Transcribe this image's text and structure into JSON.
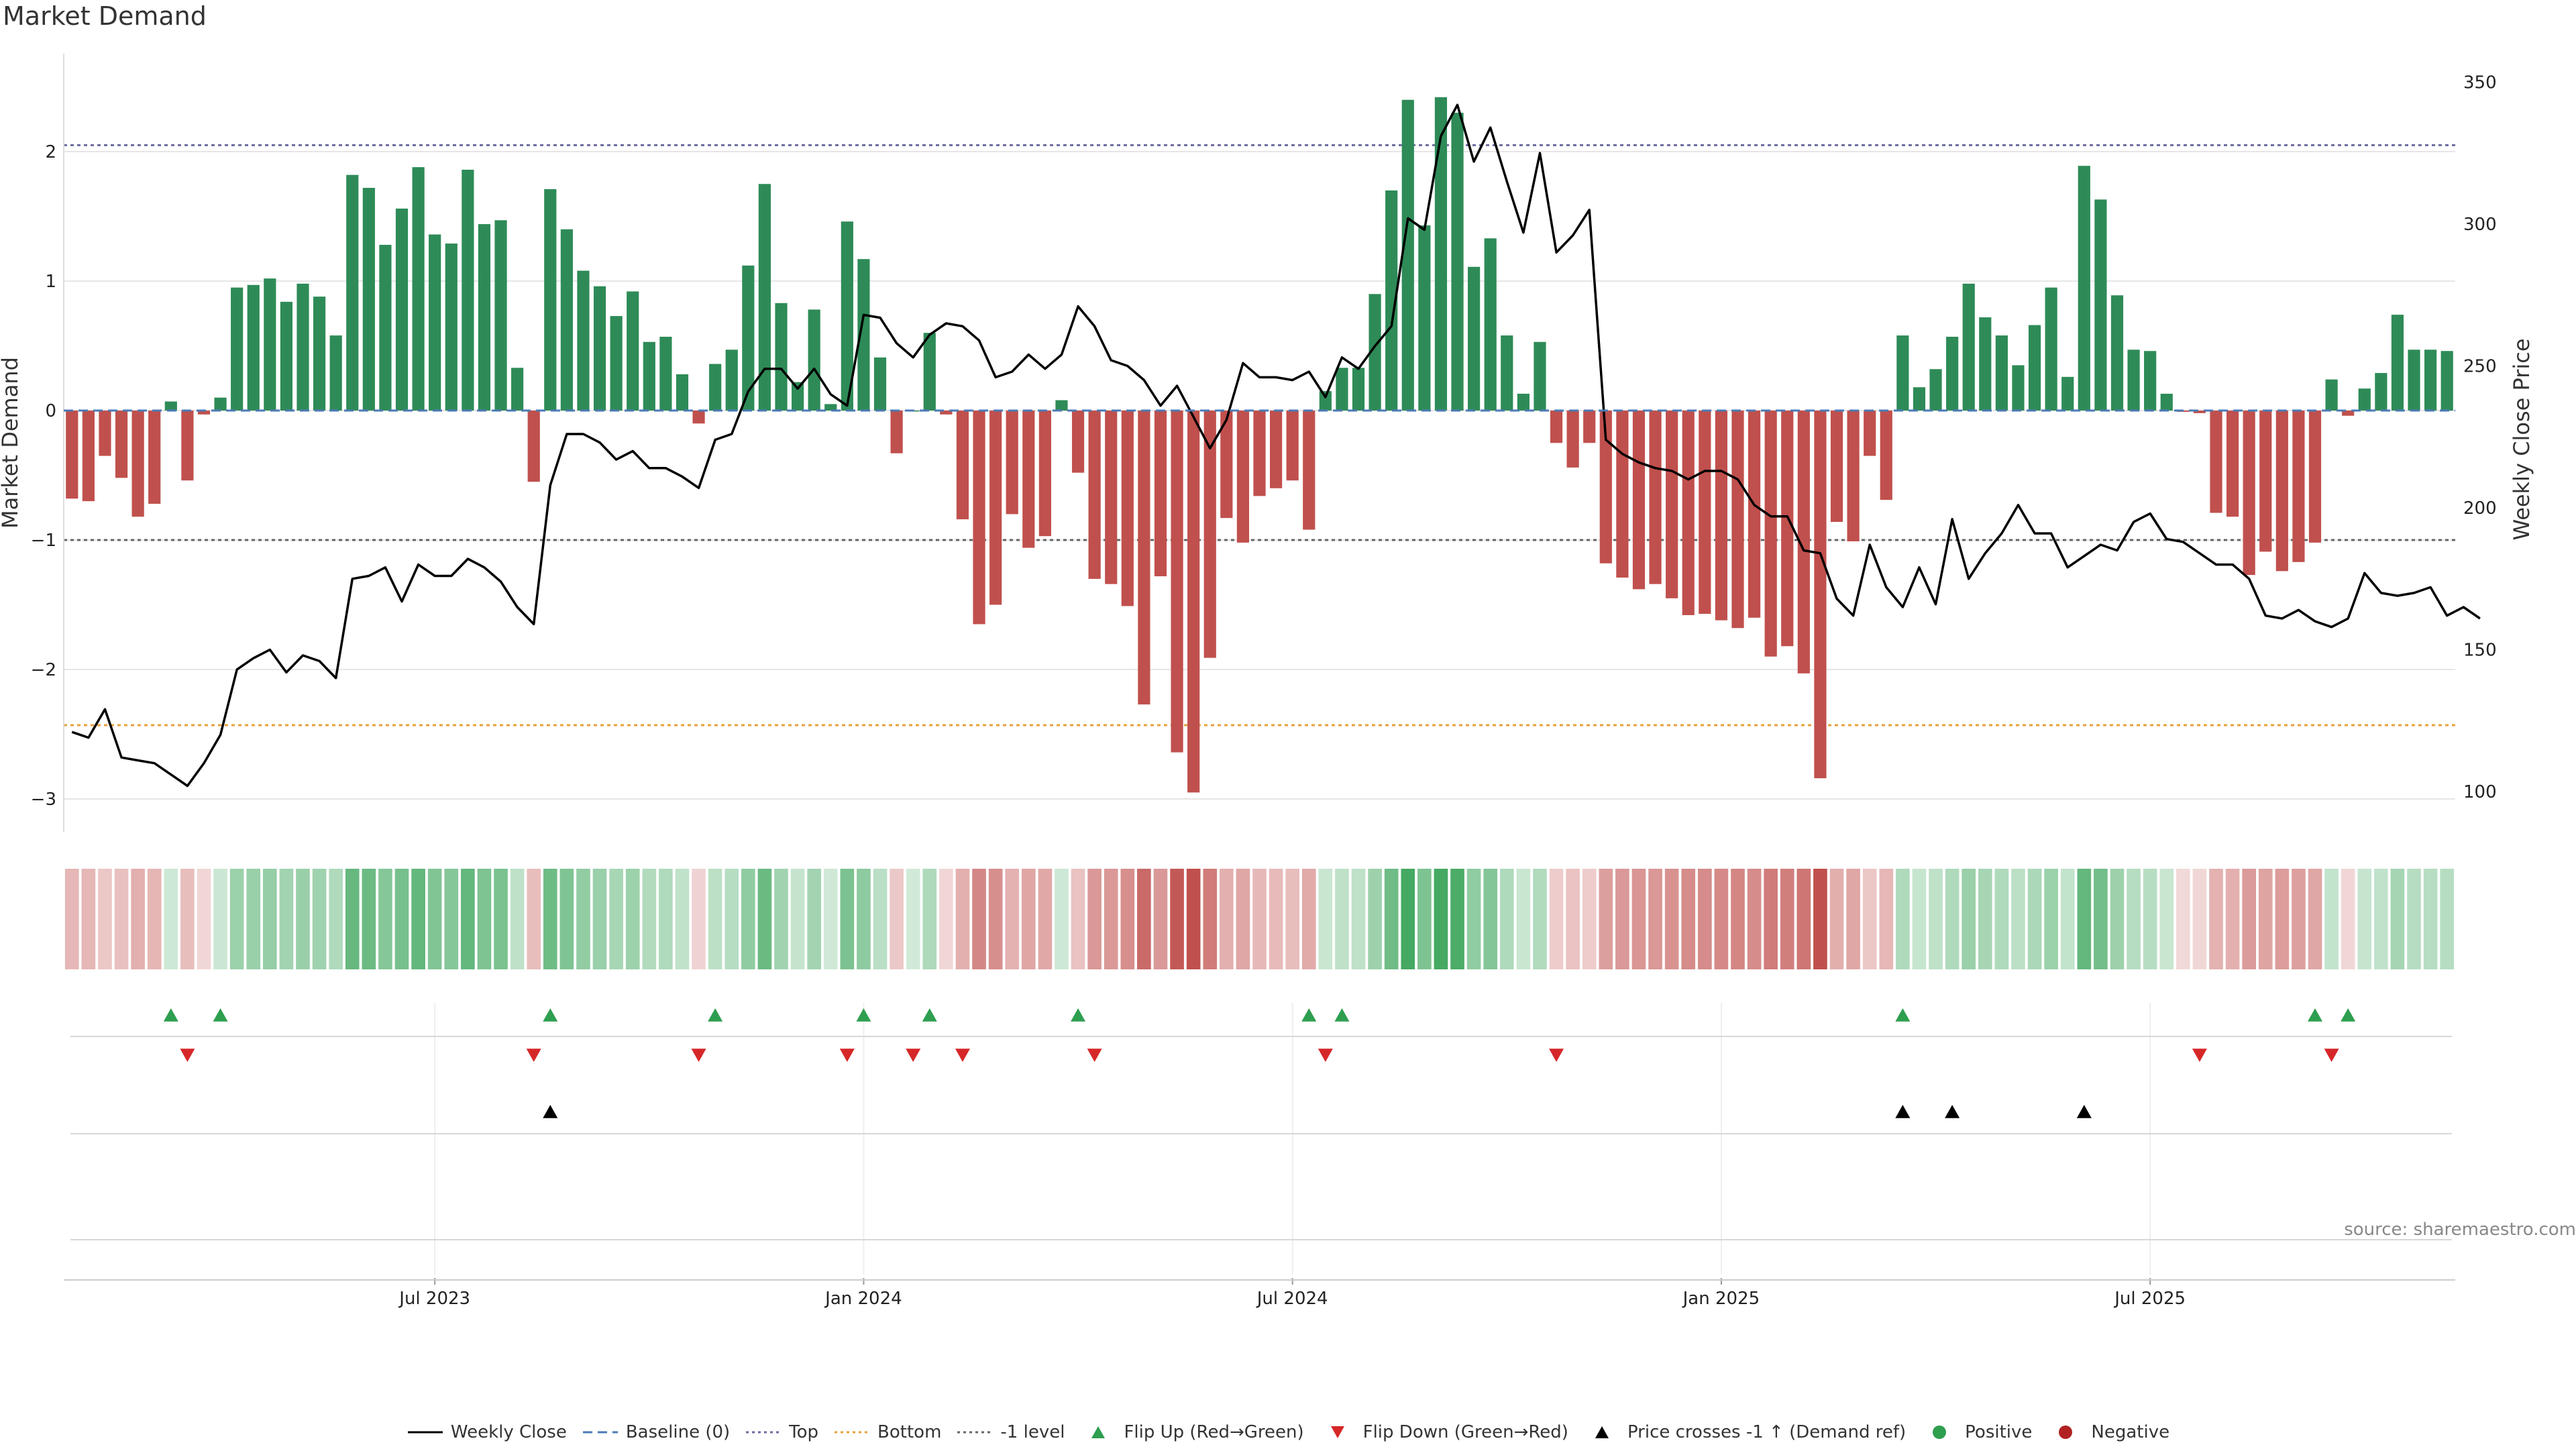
{
  "chart_data": {
    "type": "bar",
    "title": "Market Demand",
    "ylabel_left": "Market Demand",
    "ylabel_right": "Weekly Close Price",
    "source": "source: sharemaestro.com",
    "grid": true,
    "ylim_left": [
      -3.3,
      2.75
    ],
    "ylim_right": [
      95,
      355
    ],
    "yticks_left": [
      2,
      1,
      0,
      -1,
      -2,
      -3
    ],
    "yticks_left_labels": [
      "2",
      "1",
      "0",
      "−1",
      "−2",
      "−3"
    ],
    "yticks_right": [
      350,
      300,
      250,
      200,
      150,
      100
    ],
    "xticks": [
      {
        "week": 22,
        "label": "Jul 2023"
      },
      {
        "week": 48,
        "label": "Jan 2024"
      },
      {
        "week": 74,
        "label": "Jul 2024"
      },
      {
        "week": 100,
        "label": "Jan 2025"
      },
      {
        "week": 126,
        "label": "Jul 2025"
      }
    ],
    "reference_lines": {
      "baseline": 0,
      "top": 2.05,
      "bottom": -2.43,
      "minus_one": -1
    },
    "demand": [
      -0.68,
      -0.7,
      -0.35,
      -0.52,
      -0.82,
      -0.72,
      0.07,
      -0.54,
      -0.03,
      0.1,
      0.95,
      0.97,
      1.02,
      0.84,
      0.98,
      0.88,
      0.58,
      1.82,
      1.72,
      1.28,
      1.56,
      1.88,
      1.36,
      1.29,
      1.86,
      1.44,
      1.47,
      0.33,
      -0.55,
      1.71,
      1.4,
      1.08,
      0.96,
      0.73,
      0.92,
      0.53,
      0.57,
      0.28,
      -0.1,
      0.36,
      0.47,
      1.12,
      1.75,
      0.83,
      0.22,
      0.78,
      0.05,
      1.46,
      1.17,
      0.41,
      -0.33,
      0.0,
      0.6,
      -0.03,
      -0.84,
      -1.65,
      -1.5,
      -0.8,
      -1.06,
      -0.97,
      0.08,
      -0.48,
      -1.3,
      -1.34,
      -1.51,
      -2.27,
      -1.28,
      -2.64,
      -2.95,
      -1.91,
      -0.83,
      -1.02,
      -0.66,
      -0.6,
      -0.54,
      -0.92,
      0.15,
      0.33,
      0.33,
      0.9,
      1.7,
      2.4,
      1.43,
      2.42,
      2.3,
      1.11,
      1.33,
      0.58,
      0.13,
      0.53,
      -0.25,
      -0.44,
      -0.25,
      -1.18,
      -1.29,
      -1.38,
      -1.34,
      -1.45,
      -1.58,
      -1.57,
      -1.62,
      -1.68,
      -1.6,
      -1.9,
      -1.82,
      -2.03,
      -2.84,
      -0.86,
      -1.01,
      -0.35,
      -0.69,
      0.58,
      0.18,
      0.32,
      0.57,
      0.98,
      0.72,
      0.58,
      0.35,
      0.66,
      0.95,
      0.26,
      1.89,
      1.63,
      0.89,
      0.47,
      0.46,
      0.13,
      -0.01,
      -0.02,
      -0.79,
      -0.82,
      -1.27,
      -1.09,
      -1.24,
      -1.17,
      -1.02,
      0.24,
      -0.04,
      0.17,
      0.29,
      0.74,
      0.47,
      0.47,
      0.46
    ],
    "weekly_close": [
      121,
      119,
      129,
      112,
      111,
      110,
      106,
      102,
      110,
      120,
      143,
      147,
      150,
      142,
      148,
      146,
      140,
      175,
      176,
      179,
      167,
      180,
      176,
      176,
      182,
      179,
      174,
      165,
      159,
      208,
      226,
      226,
      223,
      217,
      220,
      214,
      214,
      211,
      207,
      224,
      226,
      241,
      249,
      249,
      242,
      249,
      240,
      236,
      268,
      267,
      258,
      253,
      261,
      265,
      264,
      259,
      246,
      248,
      254,
      249,
      254,
      271,
      264,
      252,
      250,
      245,
      236,
      243,
      232,
      221,
      231,
      251,
      246,
      246,
      245,
      248,
      239,
      253,
      249,
      257,
      264,
      302,
      298,
      331,
      342,
      322,
      334,
      315,
      297,
      325,
      290,
      296,
      305,
      224,
      219,
      216,
      214,
      213,
      210,
      213,
      213,
      210,
      201,
      197,
      197,
      185,
      184,
      168,
      162,
      187,
      172,
      165,
      179,
      166,
      196,
      175,
      184,
      191,
      201,
      191,
      191,
      179,
      183,
      187,
      185,
      195,
      198,
      189,
      188,
      184,
      180,
      180,
      175,
      162,
      161,
      164,
      160,
      158,
      161,
      177,
      170,
      169,
      170,
      172,
      162,
      165,
      161
    ],
    "heat_strip": {
      "positive_color": "#2e8b57",
      "negative_color": "#c0504d"
    },
    "events": {
      "flip_up_weeks": [
        6,
        9,
        29,
        39,
        48,
        52,
        61,
        75,
        77,
        111,
        136,
        138
      ],
      "flip_down_weeks": [
        7,
        28,
        38,
        47,
        51,
        54,
        62,
        76,
        90,
        129,
        137
      ],
      "price_cross_weeks": [
        29,
        111,
        114,
        122
      ]
    },
    "legend": [
      {
        "label": "Weekly Close",
        "kind": "line",
        "color": "#000000"
      },
      {
        "label": "Baseline (0)",
        "kind": "dash",
        "color": "#4a7ab5"
      },
      {
        "label": "Top",
        "kind": "dot",
        "color": "#6b6b9e"
      },
      {
        "label": "Bottom",
        "kind": "dot",
        "color": "#e8a13a"
      },
      {
        "label": "-1 level",
        "kind": "dot",
        "color": "#666666"
      },
      {
        "label": "Flip Up (Red→Green)",
        "kind": "tri-up",
        "color": "#2e9e4f"
      },
      {
        "label": "Flip Down (Green→Red)",
        "kind": "tri-down",
        "color": "#d62728"
      },
      {
        "label": "Price crosses -1 ↑ (Demand ref)",
        "kind": "tri-up",
        "color": "#000000"
      },
      {
        "label": "Positive",
        "kind": "circle",
        "color": "#2e9e4f"
      },
      {
        "label": "Negative",
        "kind": "circle",
        "color": "#b22222"
      }
    ]
  }
}
